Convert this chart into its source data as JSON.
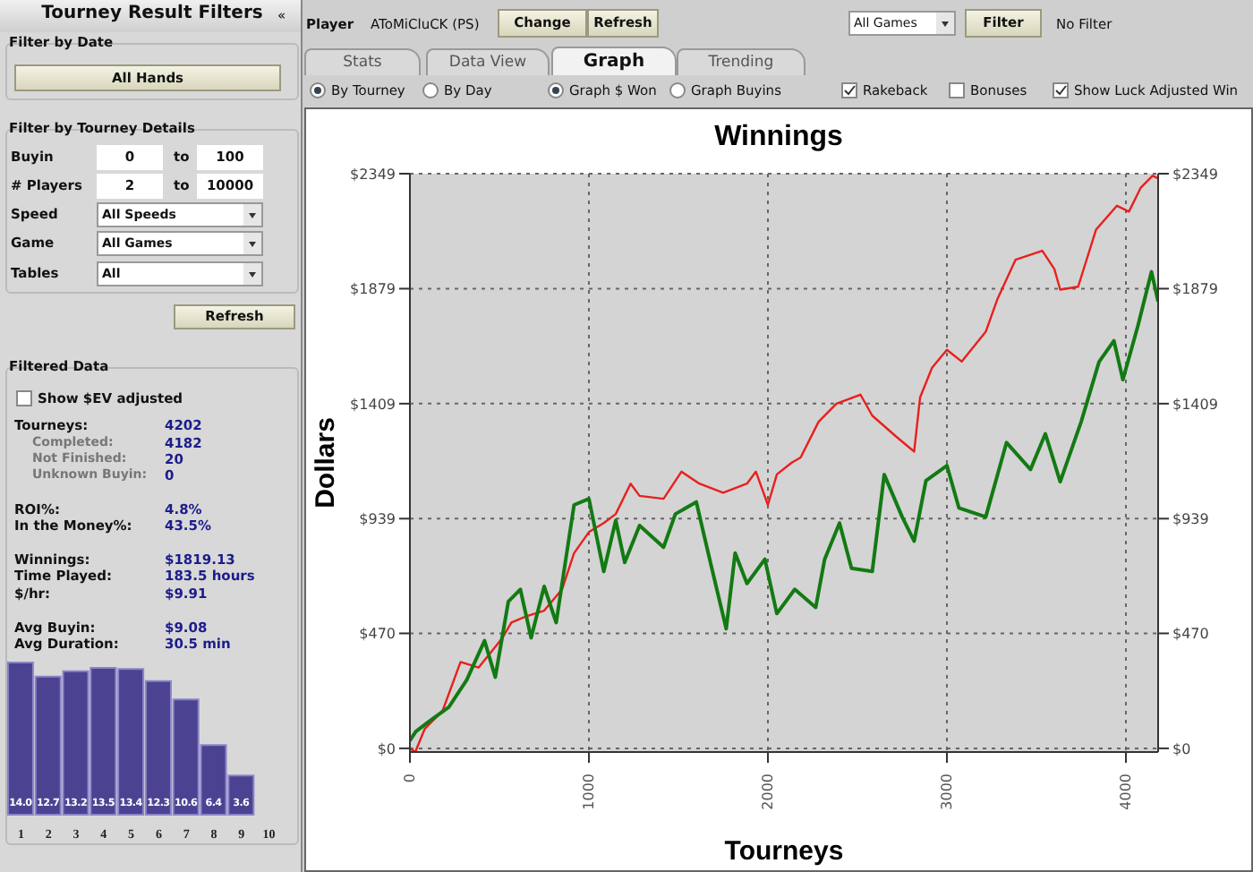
{
  "chart_data": [
    {
      "type": "other",
      "annotations": [
        "Tourney Result Filters",
        "«",
        "Filter by Date",
        "All Hands",
        "Filter by Tourney Details",
        "Buyin",
        "0",
        "to",
        "100",
        "# Players",
        "2",
        "to",
        "10000",
        "Speed",
        "All Speeds",
        "Game",
        "All Games",
        "Tables",
        "All",
        "Refresh",
        "Filtered Data",
        "Show $EV adjusted",
        "Tourneys:",
        "4202",
        "Completed:",
        "4182",
        "Not Finished:",
        "20",
        "Unknown Buyin:",
        "0",
        "ROI%:",
        "4.8%",
        "In the Money%:",
        "43.5%",
        "Winnings:",
        "$1819.13",
        "Time Played:",
        "183.5 hours",
        "$/hr:",
        "$9.91",
        "Avg Buyin:",
        "$9.08",
        "Avg Duration:",
        "30.5 min"
      ]
    },
    {
      "type": "bar",
      "categories": [
        "1",
        "2",
        "3",
        "4",
        "5",
        "6",
        "7",
        "8",
        "9",
        "10"
      ],
      "values": [
        14.0,
        12.7,
        13.2,
        13.5,
        13.4,
        12.3,
        10.6,
        6.4,
        3.6,
        null
      ],
      "value_labels": [
        "14.0",
        "12.7",
        "13.2",
        "13.5",
        "13.4",
        "12.3",
        "10.6",
        "6.4",
        "3.6",
        null
      ],
      "color": "#4b4392"
    },
    {
      "type": "other",
      "annotations": [
        "Player",
        "AToMiCluCK (PS)",
        "Change",
        "Refresh",
        "All Games",
        "Filter",
        "No Filter",
        "Stats",
        "Data View",
        "Graph",
        "Trending",
        "By Tourney",
        "By Day",
        "Graph $ Won",
        "Graph Buyins",
        "Rakeback",
        "Bonuses",
        "Show Luck Adjusted Win"
      ]
    },
    {
      "type": "line",
      "title": "Winnings",
      "xlabel": "Tourneys",
      "ylabel": "Dollars",
      "xlim": [
        0,
        4180
      ],
      "xticks": [
        0,
        1000,
        2000,
        3000,
        4000
      ],
      "ylim": [
        -15,
        2349
      ],
      "yticks": [
        {
          "value": 0,
          "label": "$0"
        },
        {
          "value": 470,
          "label": "$470"
        },
        {
          "value": 939,
          "label": "$939"
        },
        {
          "value": 1409,
          "label": "$1409"
        },
        {
          "value": 1879,
          "label": "$1879"
        },
        {
          "value": 2349,
          "label": "$2349"
        }
      ],
      "y2lim": [
        -15,
        2349
      ],
      "y2ticks": [
        {
          "value": 0,
          "label": "$0"
        },
        {
          "value": 470,
          "label": "$470"
        },
        {
          "value": 939,
          "label": "$939"
        },
        {
          "value": 1409,
          "label": "$1409"
        },
        {
          "value": 1879,
          "label": "$1879"
        },
        {
          "value": 2349,
          "label": "$2349"
        }
      ],
      "grid": true,
      "marker": "none",
      "line_style": "solid",
      "series": [
        {
          "color": "#e8201c",
          "x": [
            0,
            30,
            83,
            183,
            283,
            383,
            450,
            517,
            567,
            650,
            750,
            850,
            917,
            1000,
            1083,
            1150,
            1233,
            1283,
            1417,
            1517,
            1617,
            1750,
            1883,
            1933,
            2000,
            2050,
            2133,
            2183,
            2283,
            2383,
            2517,
            2583,
            2717,
            2817,
            2850,
            2917,
            3000,
            3083,
            3217,
            3283,
            3383,
            3533,
            3600,
            3633,
            3733,
            3833,
            3950,
            4017,
            4083,
            4150,
            4180
          ],
          "values": [
            0,
            -15,
            80,
            155,
            353,
            330,
            390,
            452,
            514,
            540,
            563,
            650,
            798,
            884,
            921,
            958,
            1082,
            1032,
            1020,
            1131,
            1082,
            1045,
            1082,
            1131,
            995,
            1120,
            1168,
            1189,
            1335,
            1409,
            1446,
            1360,
            1274,
            1213,
            1434,
            1556,
            1629,
            1581,
            1703,
            1838,
            1997,
            2034,
            1960,
            1875,
            1887,
            2120,
            2218,
            2194,
            2292,
            2341,
            2329
          ]
        },
        {
          "color": "#137a13",
          "x": [
            0,
            33,
            100,
            217,
            317,
            417,
            477,
            550,
            617,
            677,
            750,
            817,
            917,
            1000,
            1083,
            1150,
            1200,
            1283,
            1417,
            1483,
            1600,
            1683,
            1767,
            1817,
            1883,
            1983,
            2050,
            2150,
            2267,
            2317,
            2400,
            2467,
            2583,
            2650,
            2750,
            2817,
            2883,
            3000,
            3067,
            3217,
            3333,
            3467,
            3550,
            3633,
            3750,
            3850,
            3933,
            3983,
            4067,
            4143,
            4180
          ],
          "values": [
            32,
            69,
            106,
            168,
            279,
            440,
            291,
            600,
            650,
            452,
            662,
            514,
            995,
            1020,
            723,
            932,
            760,
            911,
            822,
            958,
            1007,
            747,
            489,
            798,
            674,
            773,
            551,
            650,
            576,
            773,
            921,
            736,
            723,
            1119,
            946,
            847,
            1094,
            1156,
            983,
            946,
            1250,
            1140,
            1286,
            1090,
            1335,
            1580,
            1666,
            1507,
            1727,
            1948,
            1826
          ]
        }
      ]
    }
  ]
}
